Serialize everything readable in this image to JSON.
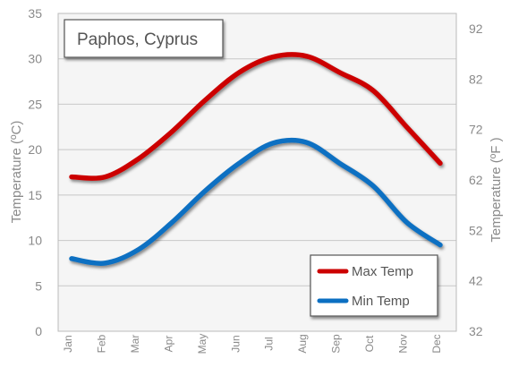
{
  "chart_data": {
    "type": "line",
    "title": "Paphos, Cyprus",
    "categories": [
      "Jan",
      "Feb",
      "Mar",
      "Apr",
      "May",
      "Jun",
      "Jul",
      "Aug",
      "Sep",
      "Oct",
      "Nov",
      "Dec"
    ],
    "series": [
      {
        "name": "Max Temp",
        "color": "#cc0000",
        "values": [
          17,
          17,
          19,
          22,
          25.5,
          28.5,
          30.2,
          30.3,
          28.5,
          26.5,
          22.5,
          18.5
        ]
      },
      {
        "name": "Min Temp",
        "color": "#0b6fc2",
        "values": [
          8,
          7.5,
          9,
          12,
          15.5,
          18.5,
          20.7,
          20.8,
          18.5,
          16,
          12,
          9.5
        ]
      }
    ],
    "ylabel_left": "Temperature (ºC)",
    "ylabel_right": "Temperature (ºF )",
    "ylim": [
      0,
      35
    ],
    "yticks_left": [
      "0",
      "5",
      "10",
      "15",
      "20",
      "25",
      "30",
      "35"
    ],
    "yticks_right": [
      "32",
      "42",
      "52",
      "62",
      "72",
      "82",
      "92"
    ],
    "grid": true,
    "legend_position": "bottom-right"
  }
}
